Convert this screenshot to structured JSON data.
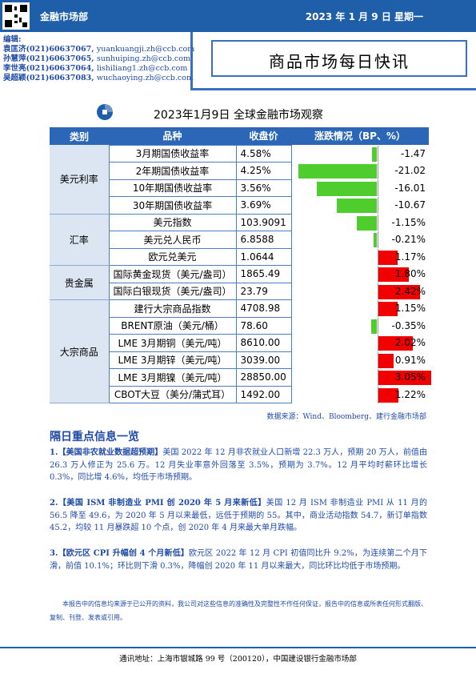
{
  "header": {
    "department": "金融市场部",
    "date": "2023 年 1 月 9 日  星期一"
  },
  "editors": {
    "label": "编辑:",
    "people": [
      {
        "name": "袁匡济",
        "phone": "(021)60637067,",
        "email": "yuankuangji.zh@ccb.com"
      },
      {
        "name": "孙慧萍",
        "phone": "(021)60637065,",
        "email": "sunhuiping.zh@ccb.com"
      },
      {
        "name": "李世亮",
        "phone": "(021)60637064,",
        "email": "lishiliang1.zh@ccb.com"
      },
      {
        "name": "吴超颖",
        "phone": "(021)60637083,",
        "email": "wuchaoying.zh@ccb.com"
      }
    ]
  },
  "report_title": "商品市场每日快讯",
  "table": {
    "title": "2023年1月9日  全球金融市场观察",
    "headers": [
      "类别",
      "品种",
      "收盘价",
      "涨跌情况（BP、%）"
    ],
    "colors": {
      "negative": "#4fcc2e",
      "positive": "#f20000",
      "header": "#2b67b6"
    },
    "groups": [
      {
        "category": "美元利率",
        "rows": [
          {
            "item": "3月期国债收益率",
            "close": "4.58%",
            "change_label": "-1.47",
            "change": -1.47
          },
          {
            "item": "2年期国债收益率",
            "close": "4.25%",
            "change_label": "-21.02",
            "change": -21.02
          },
          {
            "item": "10年期国债收益率",
            "close": "3.56%",
            "change_label": "-16.01",
            "change": -16.01
          },
          {
            "item": "30年期国债收益率",
            "close": "3.69%",
            "change_label": "-10.67",
            "change": -10.67
          }
        ]
      },
      {
        "category": "汇率",
        "rows": [
          {
            "item": "美元指数",
            "close": "103.9091",
            "change_label": "-1.15%",
            "change": -1.15
          },
          {
            "item": "美元兑人民币",
            "close": "6.8588",
            "change_label": "-0.21%",
            "change": -0.21
          },
          {
            "item": "欧元兑美元",
            "close": "1.0644",
            "change_label": "1.17%",
            "change": 1.17
          }
        ]
      },
      {
        "category": "贵金属",
        "rows": [
          {
            "item": "国际黄金现货（美元/盎司）",
            "close": "1865.49",
            "change_label": "1.80%",
            "change": 1.8
          },
          {
            "item": "国际白银现货（美元/盎司）",
            "close": "23.79",
            "change_label": "2.42%",
            "change": 2.42
          }
        ]
      },
      {
        "category": "大宗商品",
        "rows": [
          {
            "item": "建行大宗商品指数",
            "close": "4708.98",
            "change_label": "1.15%",
            "change": 1.15
          },
          {
            "item": "BRENT原油（美元/桶）",
            "close": "78.60",
            "change_label": "-0.35%",
            "change": -0.35
          },
          {
            "item": "LME 3月期铜（美元/吨）",
            "close": "8610.00",
            "change_label": "2.02%",
            "change": 2.02
          },
          {
            "item": "LME 3月期锌（美元/吨）",
            "close": "3039.00",
            "change_label": "0.91%",
            "change": 0.91
          },
          {
            "item": "LME 3月期镍（美元/吨）",
            "close": "28850.00",
            "change_label": "3.05%",
            "change": 3.05
          },
          {
            "item": "CBOT大豆（美分/蒲式耳）",
            "close": "1492.00",
            "change_label": "1.22%",
            "change": 1.22
          }
        ]
      }
    ],
    "source": "数据来源：Wind、Bloomberg、建行金融市场部"
  },
  "news": {
    "heading": "隔日重点信息一览",
    "items": [
      {
        "headline": "1.【美国非农就业数据超预期】",
        "body": "美国 2022 年 12 月非农就业人口新增 22.3 万人，预期 20 万人，前值由 26.3 万人修正为 25.6 万。12 月失业率意外回落至 3.5%，预期为 3.7%。12 月平均时薪环比增长 0.3%，同比增 4.6%，均低于市场预期。"
      },
      {
        "headline": "2.【美国 ISM 非制造业 PMI 创 2020 年 5 月来新低】",
        "body": "美国 12 月 ISM 非制造业 PMI 从 11 月的 56.5 降至 49.6，为 2020 年 5 月以来最低，远低于预期的 55。其中，商业活动指数 54.7，新订单指数 45.2，均较 11 月暴跌超 10 个点，创 2020 年 4 月来最大单月跌幅。"
      },
      {
        "headline": "3.【欧元区 CPI 升幅创 4 个月新低】",
        "body": "欧元区 2022 年 12 月 CPI 初值同比升 9.2%，为连续第二个月下滑，前值 10.1%；环比则下滑 0.3%，降幅创 2020 年 11 月以来最大，同比环比均低于市场预期。"
      }
    ]
  },
  "disclaimer": "本报告中的信息均来源于已公开的资料，我公司对这些信息的准确性及完整性不作任何保证，报告中的信息或所表任何形式翻版、复制、刊登、发表或引用。",
  "footer": "通讯地址：上海市银城路 99 号（200120），中国建设银行金融市场部"
}
